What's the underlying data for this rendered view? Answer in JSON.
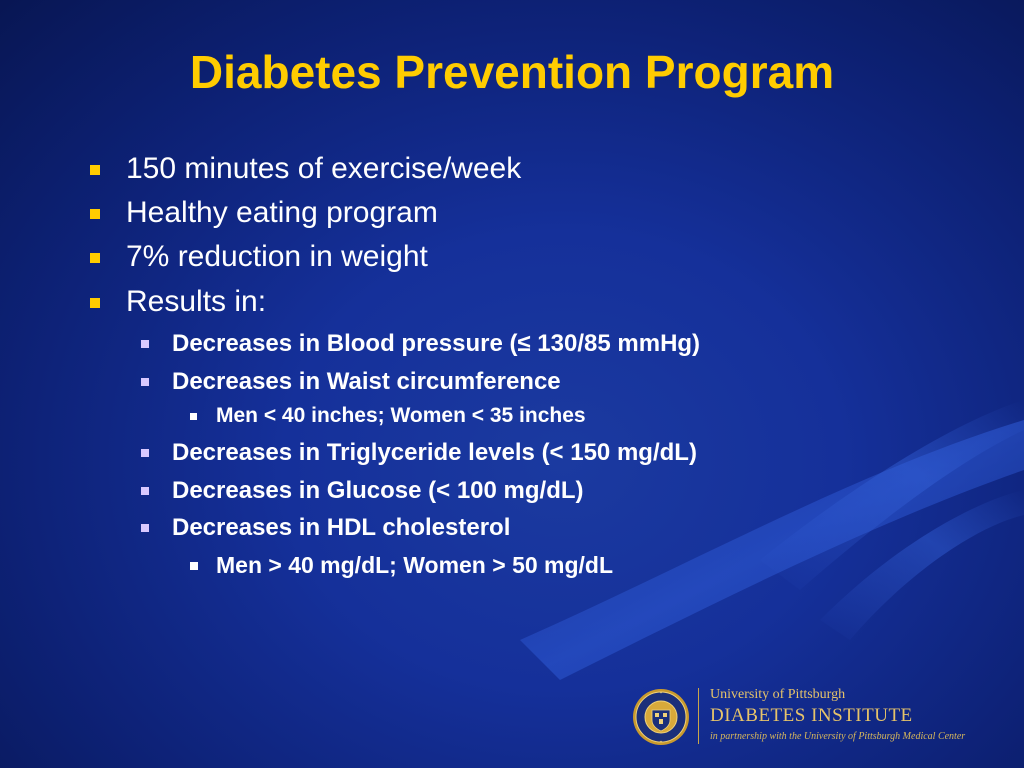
{
  "slide": {
    "title": "Diabetes Prevention Program",
    "title_color": "#ffcc00",
    "background_color": "#15309a",
    "items": [
      {
        "level": 1,
        "text": "150 minutes of exercise/week"
      },
      {
        "level": 1,
        "text": "Healthy eating program"
      },
      {
        "level": 1,
        "text": "7% reduction in weight"
      },
      {
        "level": 1,
        "text": "Results in:"
      },
      {
        "level": 2,
        "text": "Decreases in Blood pressure (≤ 130/85 mmHg)"
      },
      {
        "level": 2,
        "text": "Decreases in Waist circumference"
      },
      {
        "level": 3,
        "text": "Men < 40 inches; Women < 35 inches"
      },
      {
        "level": 2,
        "text": "Decreases in Triglyceride levels (< 150 mg/dL)"
      },
      {
        "level": 2,
        "text": "Decreases in Glucose (< 100 mg/dL)"
      },
      {
        "level": 2,
        "text": "Decreases in HDL cholesterol"
      },
      {
        "level": 3,
        "text": "Men > 40 mg/dL; Women > 50 mg/dL"
      }
    ]
  },
  "footer": {
    "seal_text": "UNIVERSITY OF PITTSBURGH",
    "line1": "University of Pittsburgh",
    "line2": "DIABETES INSTITUTE",
    "line3": "in partnership with the University of Pittsburgh Medical Center",
    "accent_color": "#e6c36a"
  }
}
